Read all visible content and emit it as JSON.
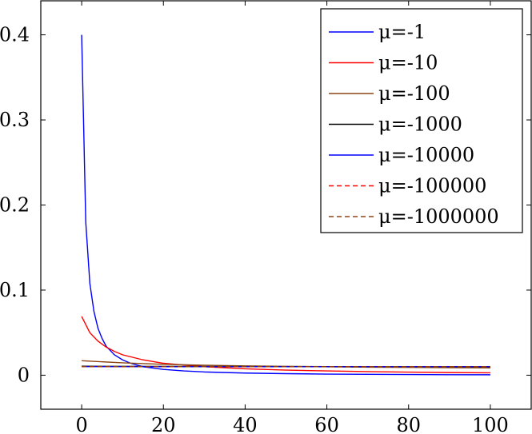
{
  "chart_data": {
    "type": "line",
    "title": "",
    "xlabel": "",
    "ylabel": "",
    "xlim": [
      -10,
      110
    ],
    "ylim": [
      -0.04,
      0.44
    ],
    "xticks": [
      0,
      20,
      40,
      60,
      80,
      100
    ],
    "yticks": [
      0,
      0.1,
      0.2,
      0.3,
      0.4
    ],
    "xtick_labels": [
      "0",
      "20",
      "40",
      "60",
      "80",
      "100"
    ],
    "ytick_labels": [
      "0",
      "0.1",
      "0.2",
      "0.3",
      "0.4"
    ],
    "grid": false,
    "legend_position": "top-right",
    "series": [
      {
        "name": "μ=-1",
        "legend_label": "μ=-1",
        "color": "#0000ff",
        "dash": "solid",
        "x": [
          0,
          1,
          2,
          3,
          4,
          5,
          6,
          8,
          10,
          12,
          15,
          20,
          25,
          30,
          40,
          50,
          60,
          70,
          80,
          90,
          100
        ],
        "y": [
          0.4,
          0.18,
          0.108,
          0.075,
          0.055,
          0.043,
          0.034,
          0.024,
          0.018,
          0.014,
          0.01,
          0.0068,
          0.005,
          0.0038,
          0.0025,
          0.0018,
          0.0013,
          0.001,
          0.0008,
          0.0006,
          0.0005
        ]
      },
      {
        "name": "μ=-10",
        "legend_label": "μ=-10",
        "color": "#ff0000",
        "dash": "solid",
        "x": [
          0,
          2,
          4,
          6,
          8,
          10,
          15,
          20,
          25,
          30,
          40,
          50,
          60,
          70,
          80,
          90,
          100
        ],
        "y": [
          0.069,
          0.05,
          0.04,
          0.033,
          0.028,
          0.024,
          0.018,
          0.014,
          0.012,
          0.01,
          0.0075,
          0.006,
          0.005,
          0.0042,
          0.0036,
          0.0031,
          0.0028
        ]
      },
      {
        "name": "μ=-100",
        "legend_label": "μ=-100",
        "color": "#8b4513",
        "dash": "solid",
        "x": [
          0,
          10,
          20,
          30,
          40,
          50,
          60,
          70,
          80,
          90,
          100
        ],
        "y": [
          0.017,
          0.0145,
          0.0128,
          0.0117,
          0.0109,
          0.0103,
          0.0098,
          0.0094,
          0.0091,
          0.0088,
          0.0086
        ]
      },
      {
        "name": "μ=-1000",
        "legend_label": "μ=-1000",
        "color": "#000000",
        "dash": "solid",
        "x": [
          0,
          20,
          40,
          60,
          80,
          100
        ],
        "y": [
          0.0105,
          0.0103,
          0.0102,
          0.0101,
          0.01,
          0.0099
        ]
      },
      {
        "name": "μ=-10000",
        "legend_label": "μ=-10000",
        "color": "#0000ff",
        "dash": "solid",
        "x": [
          0,
          20,
          40,
          60,
          80,
          100
        ],
        "y": [
          0.0101,
          0.01,
          0.01,
          0.01,
          0.01,
          0.01
        ]
      },
      {
        "name": "μ=-100000",
        "legend_label": "μ=-100000",
        "color": "#ff0000",
        "dash": "dashed",
        "x": [
          0,
          20,
          40,
          60,
          80,
          100
        ],
        "y": [
          0.01,
          0.01,
          0.01,
          0.01,
          0.01,
          0.01
        ]
      },
      {
        "name": "μ=-1000000",
        "legend_label": "μ=-1000000",
        "color": "#8b4513",
        "dash": "dashed",
        "x": [
          0,
          20,
          40,
          60,
          80,
          100
        ],
        "y": [
          0.01,
          0.01,
          0.01,
          0.01,
          0.01,
          0.01
        ]
      }
    ]
  }
}
